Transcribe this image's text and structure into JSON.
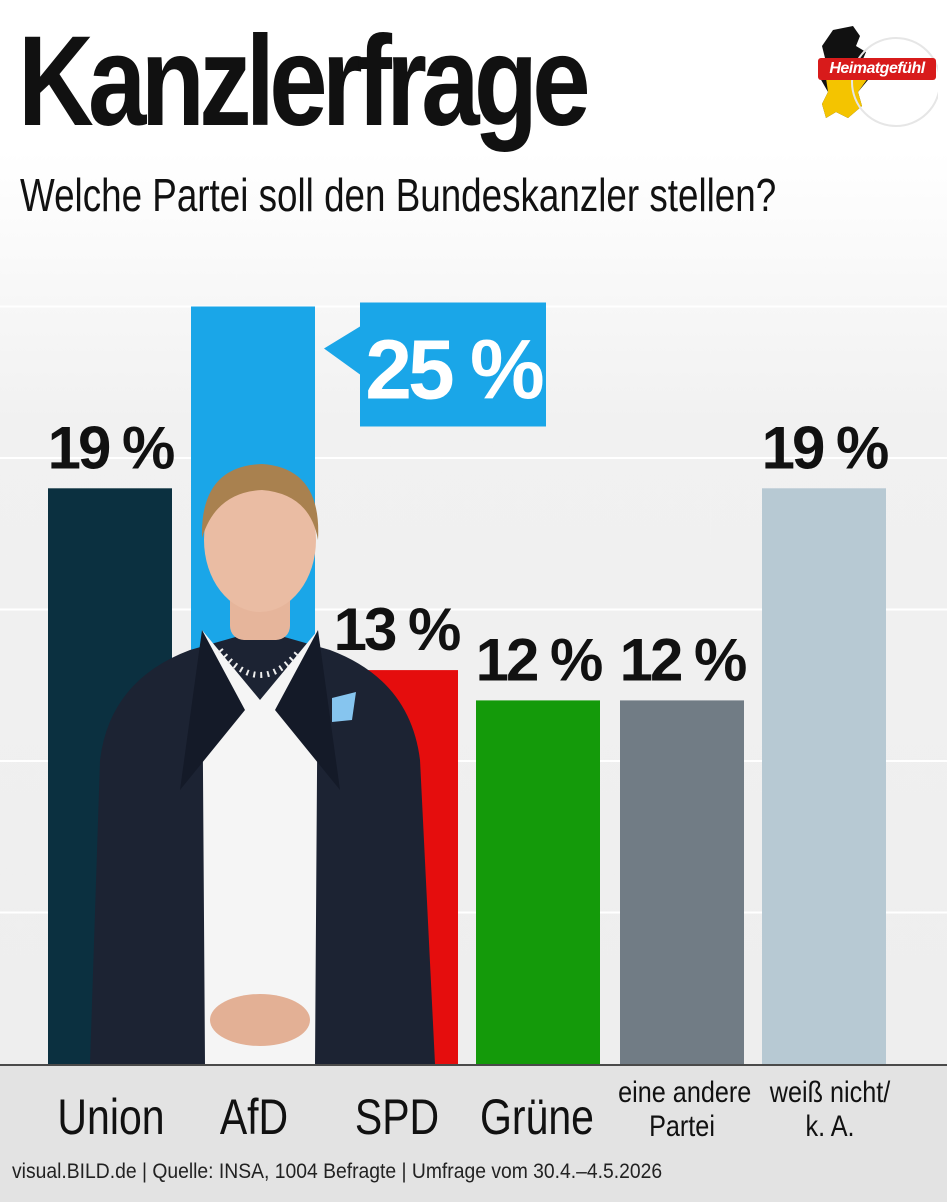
{
  "header": {
    "title": "Kanzlerfrage",
    "subtitle": "Welche Partei soll den Bundeskanzler stellen?",
    "logo_text": "Heimatgefühl"
  },
  "colors": {
    "union": "#0b3040",
    "afd": "#1aa6e8",
    "spd": "#e50d0d",
    "gruene": "#149a0a",
    "andere": "#717c85",
    "weissnicht": "#b7c9d3"
  },
  "chart_data": {
    "type": "bar",
    "categories": [
      "Union",
      "AfD",
      "SPD",
      "Grüne",
      "eine andere Partei",
      "weiß nicht/ k. A."
    ],
    "values": [
      19,
      25,
      13,
      12,
      12,
      19
    ],
    "value_labels": [
      "19 %",
      "25 %",
      "13 %",
      "12 %",
      "12 %",
      "19 %"
    ],
    "unit": "%",
    "highlight_index": 1,
    "ylim": [
      0,
      25
    ],
    "grid": true,
    "title": "Kanzlerfrage",
    "subtitle": "Welche Partei soll den Bundeskanzler stellen?"
  },
  "labels": {
    "union": "Union",
    "afd": "AfD",
    "spd": "SPD",
    "gruene": "Grüne",
    "andere_line1": "eine andere",
    "andere_line2": "Partei",
    "weissnicht_line1": "weiß nicht/",
    "weissnicht_line2": "k. A."
  },
  "footer": {
    "source": "visual.BILD.de | Quelle: INSA, 1004 Befragte | Umfrage vom 30.4.–4.5.2026"
  }
}
